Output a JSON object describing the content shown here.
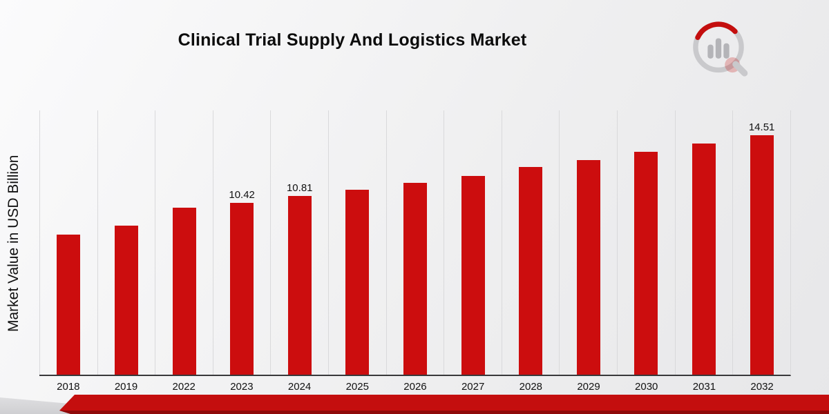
{
  "chart_data": {
    "type": "bar",
    "title": "Clinical Trial Supply And Logistics Market",
    "xlabel": "",
    "ylabel": "Market Value in USD Billion",
    "categories": [
      "2018",
      "2019",
      "2022",
      "2023",
      "2024",
      "2025",
      "2026",
      "2027",
      "2028",
      "2029",
      "2030",
      "2031",
      "2032"
    ],
    "values": [
      8.5,
      9.04,
      10.09,
      10.42,
      10.81,
      11.21,
      11.63,
      12.05,
      12.59,
      13.01,
      13.51,
      14.01,
      14.51
    ],
    "value_labels": [
      "",
      "",
      "",
      "10.42",
      "10.81",
      "",
      "",
      "",
      "",
      "",
      "",
      "",
      "14.51"
    ],
    "ylim": [
      0,
      16
    ],
    "grid": "vertical",
    "legend": "none",
    "bar_color": "#cc0d0e"
  },
  "branding": {
    "logo_icon": "analytics-magnifier-logo",
    "ring_color": "#c9c9cc",
    "accent_color": "#c40e0e"
  },
  "footer": {
    "ribbon_color": "#c40e0e",
    "ribbon_shadow_color": "#8e0909",
    "corner_color": "#d4d4d7"
  }
}
